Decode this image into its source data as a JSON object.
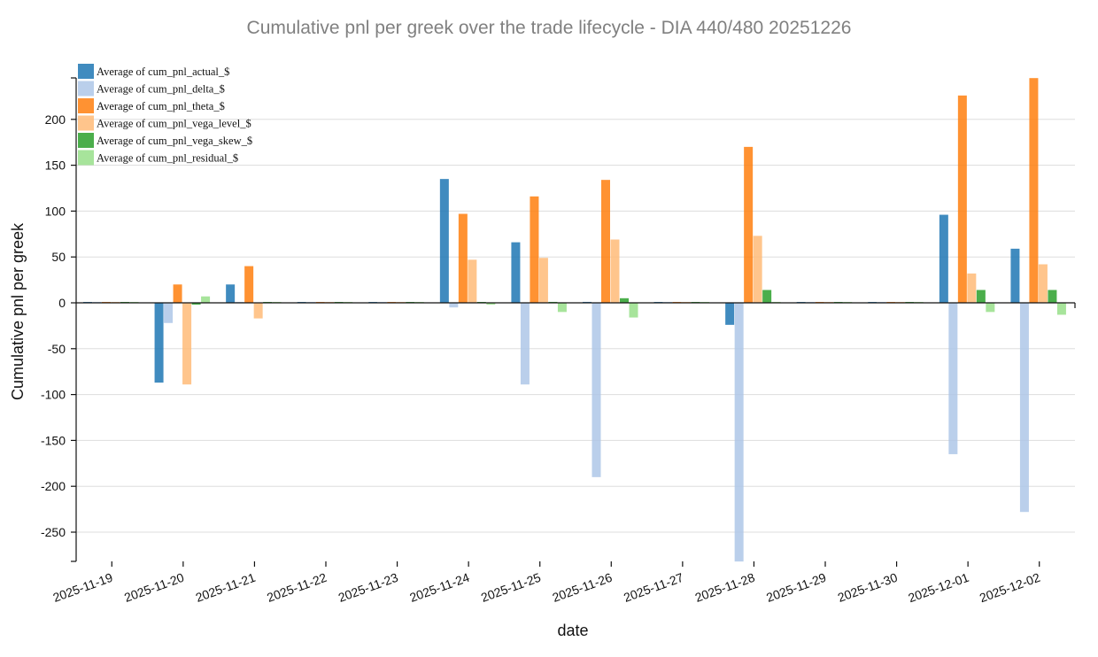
{
  "chart_data": {
    "type": "bar",
    "title": "Cumulative pnl per greek over the trade lifecycle - DIA 440/480 20251226",
    "xlabel": "date",
    "ylabel": "Cumulative pnl per greek",
    "ylim": [
      -280,
      245
    ],
    "yticks": [
      -250,
      -200,
      -150,
      -100,
      -50,
      0,
      50,
      100,
      150,
      200
    ],
    "grid": true,
    "legend_position": "top-left",
    "categories": [
      "2025-11-19",
      "2025-11-20",
      "2025-11-21",
      "2025-11-22",
      "2025-11-23",
      "2025-11-24",
      "2025-11-25",
      "2025-11-26",
      "2025-11-27",
      "2025-11-28",
      "2025-11-29",
      "2025-11-30",
      "2025-12-01",
      "2025-12-02"
    ],
    "series": [
      {
        "name": "Average of cum_pnl_actual_$",
        "color": "#1f77b4",
        "values": [
          0,
          -87,
          20,
          0,
          0,
          135,
          66,
          1,
          0,
          -24,
          0,
          0,
          96,
          59
        ]
      },
      {
        "name": "Average of cum_pnl_delta_$",
        "color": "#aec7e8",
        "values": [
          0,
          -22,
          0,
          0,
          0,
          -5,
          -89,
          -190,
          0,
          -282,
          0,
          0,
          -165,
          -228
        ]
      },
      {
        "name": "Average of cum_pnl_theta_$",
        "color": "#ff7f0e",
        "values": [
          0,
          20,
          40,
          0,
          0,
          97,
          116,
          134,
          0,
          170,
          0,
          0,
          226,
          245
        ]
      },
      {
        "name": "Average of cum_pnl_vega_level_$",
        "color": "#ffbb78",
        "values": [
          0,
          -89,
          -17,
          0,
          0,
          47,
          49,
          69,
          0,
          73,
          0,
          0,
          32,
          42
        ]
      },
      {
        "name": "Average of cum_pnl_vega_skew_$",
        "color": "#2ca02c",
        "values": [
          0,
          -2,
          0,
          0,
          0,
          0,
          1,
          5,
          0,
          14,
          0,
          0,
          14,
          14
        ]
      },
      {
        "name": "Average of cum_pnl_residual_$",
        "color": "#98df8a",
        "values": [
          0,
          7,
          0,
          0,
          0,
          -2,
          -10,
          -16,
          0,
          1,
          0,
          0,
          -10,
          -13
        ]
      }
    ]
  }
}
